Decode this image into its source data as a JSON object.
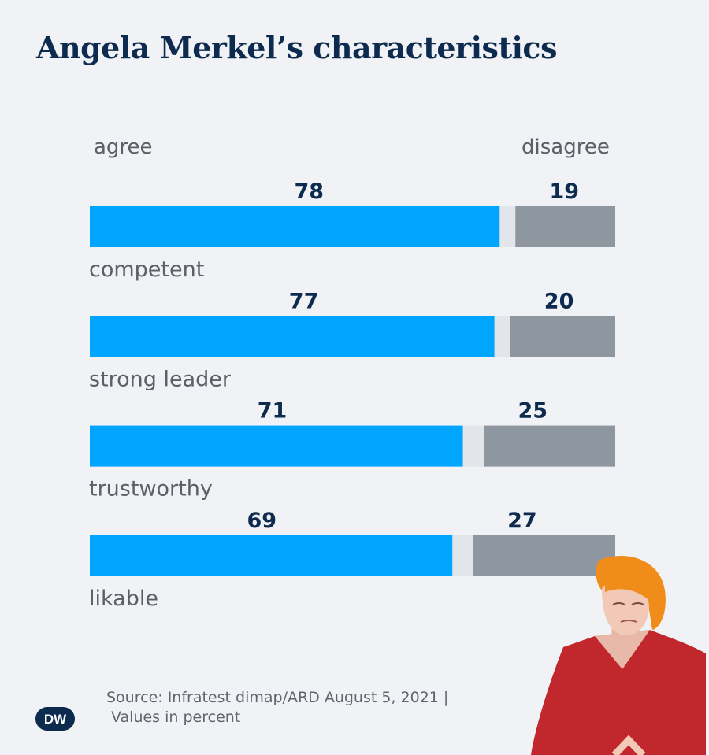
{
  "title": "Angela Merkel’s characteristics",
  "legend": {
    "agree": "agree",
    "disagree": "disagree"
  },
  "colors": {
    "agree": "#00a5ff",
    "disagree": "#8e969f",
    "neutral": "#e2e6ea",
    "value_text": "#0d2a4f",
    "label_text": "#5a6068"
  },
  "chart_data": {
    "type": "bar",
    "orientation": "horizontal-stacked",
    "categories": [
      "competent",
      "strong leader",
      "trustworthy",
      "likable"
    ],
    "series": [
      {
        "name": "agree",
        "values": [
          78,
          77,
          71,
          69
        ]
      },
      {
        "name": "disagree",
        "values": [
          19,
          20,
          25,
          27
        ]
      }
    ],
    "unit": "percent",
    "xlim": [
      0,
      100
    ]
  },
  "source": {
    "line1": "Source: Infratest dimap/ARD August 5, 2021 |",
    "line2": "Values in percent"
  },
  "logo_text": "DW"
}
